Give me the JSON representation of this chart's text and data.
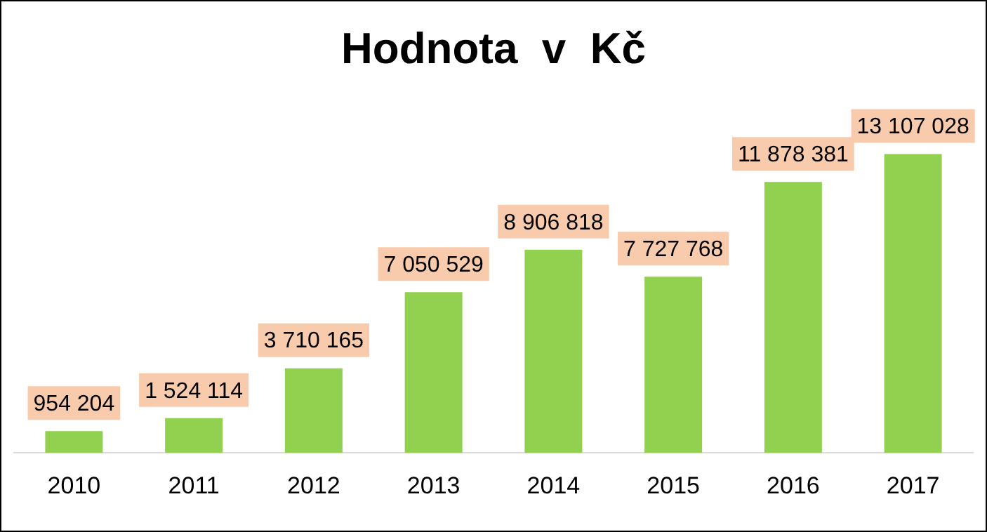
{
  "chart_data": {
    "type": "bar",
    "title": "Hodnota  v  Kč",
    "categories": [
      "2010",
      "2011",
      "2012",
      "2013",
      "2014",
      "2015",
      "2016",
      "2017"
    ],
    "values": [
      954204,
      1524114,
      3710165,
      7050529,
      8906818,
      7727768,
      11878381,
      13107028
    ],
    "color": "#92d050",
    "value_labels": [
      "954 204",
      "1 524 114",
      "3 710 165",
      "7 050 529",
      "8 906 818",
      "7 727 768",
      "11 878 381",
      "13 107 028"
    ],
    "grid": false,
    "legend": false
  }
}
